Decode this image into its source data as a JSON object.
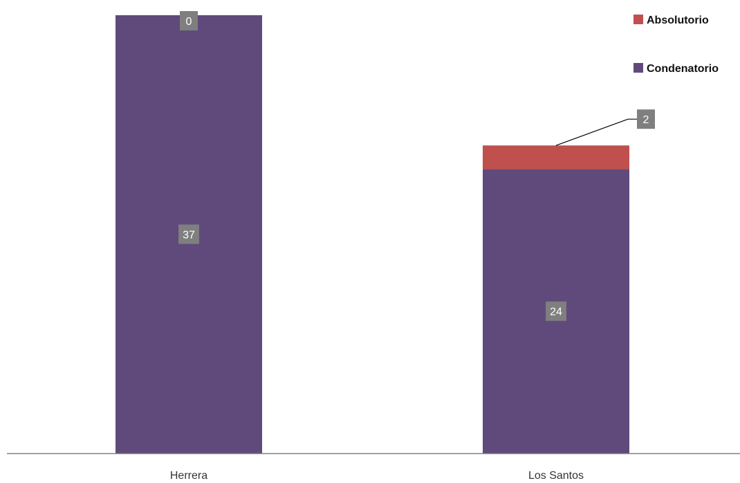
{
  "chart_data": {
    "type": "bar",
    "stacked": true,
    "categories": [
      "Herrera",
      "Los Santos"
    ],
    "series": [
      {
        "name": "Condenatorio",
        "values": [
          37,
          24
        ],
        "color": "#604a7b"
      },
      {
        "name": "Absolutorio",
        "values": [
          0,
          2
        ],
        "color": "#c0504d"
      }
    ],
    "title": "",
    "xlabel": "",
    "ylabel": "",
    "ylim": [
      0,
      37
    ],
    "grid": false,
    "legend": {
      "position": "top-right",
      "order": [
        "Absolutorio",
        "Condenatorio"
      ]
    },
    "data_label_color": "#7f7f7f",
    "axis_color": "#7f7f7f"
  }
}
